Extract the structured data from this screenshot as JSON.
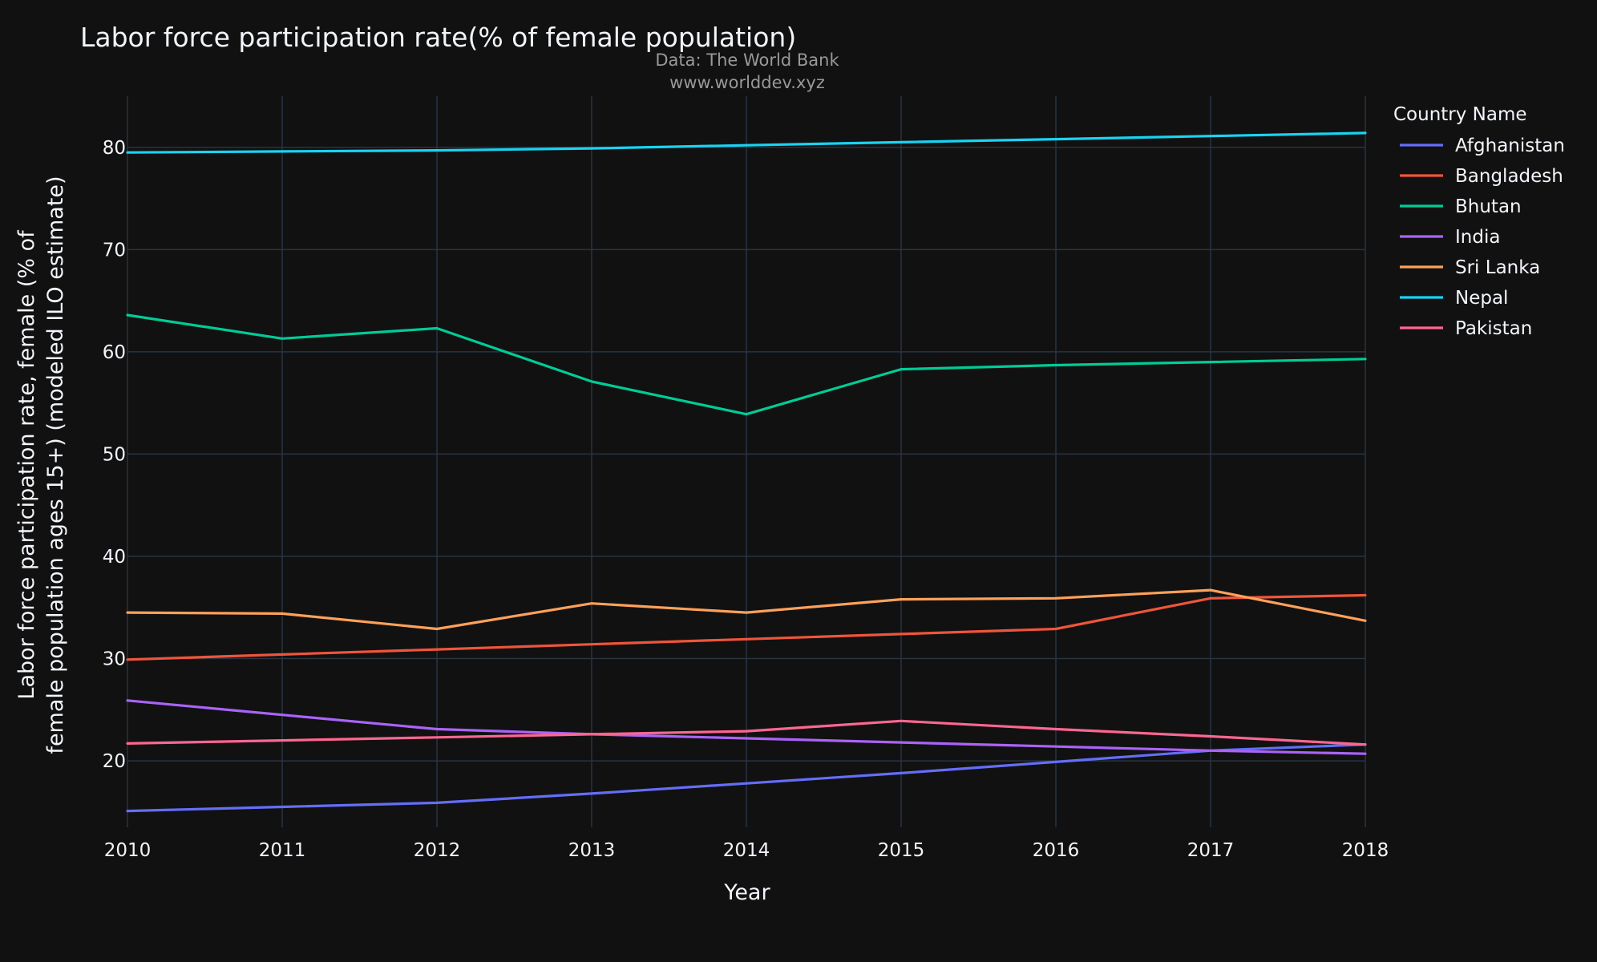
{
  "chart_data": {
    "type": "line",
    "title": "Labor force participation rate(% of female population)",
    "annotation_lines": [
      "Data: The World Bank",
      "www.worlddev.xyz"
    ],
    "xlabel": "Year",
    "ylabel_lines": [
      "Labor force participation rate, female (% of",
      "female population ages 15+) (modeled ILO estimate)"
    ],
    "x": [
      2010,
      2011,
      2012,
      2013,
      2014,
      2015,
      2016,
      2017,
      2018
    ],
    "xlim": [
      2010,
      2018
    ],
    "ylim": [
      13.5,
      85
    ],
    "yticks": [
      20,
      30,
      40,
      50,
      60,
      70,
      80
    ],
    "grid": true,
    "legend_title": "Country Name",
    "legend_position": "right",
    "colors": {
      "background": "#111111",
      "grid": "#283442",
      "text": "#f2f5fa",
      "annotation": "#999999"
    },
    "series": [
      {
        "name": "Afghanistan",
        "color": "#636efa",
        "values": [
          15.1,
          15.5,
          15.9,
          16.8,
          17.8,
          18.8,
          19.9,
          21.0,
          21.6
        ]
      },
      {
        "name": "Bangladesh",
        "color": "#EF553B",
        "values": [
          29.9,
          30.4,
          30.9,
          31.4,
          31.9,
          32.4,
          32.9,
          35.9,
          36.2
        ]
      },
      {
        "name": "Bhutan",
        "color": "#00cc96",
        "values": [
          63.6,
          61.3,
          62.3,
          57.1,
          53.9,
          58.3,
          58.7,
          59.0,
          59.3
        ]
      },
      {
        "name": "India",
        "color": "#ab63fa",
        "values": [
          25.9,
          24.5,
          23.1,
          22.6,
          22.2,
          21.8,
          21.4,
          21.0,
          20.7
        ]
      },
      {
        "name": "Sri Lanka",
        "color": "#FFA15A",
        "values": [
          34.5,
          34.4,
          32.9,
          35.4,
          34.5,
          35.8,
          35.9,
          36.7,
          33.7
        ]
      },
      {
        "name": "Nepal",
        "color": "#19d3f3",
        "values": [
          79.5,
          79.6,
          79.7,
          79.9,
          80.2,
          80.5,
          80.8,
          81.1,
          81.4
        ]
      },
      {
        "name": "Pakistan",
        "color": "#FF6692",
        "values": [
          21.7,
          22.0,
          22.3,
          22.6,
          22.9,
          23.9,
          23.1,
          22.4,
          21.6
        ]
      }
    ]
  }
}
